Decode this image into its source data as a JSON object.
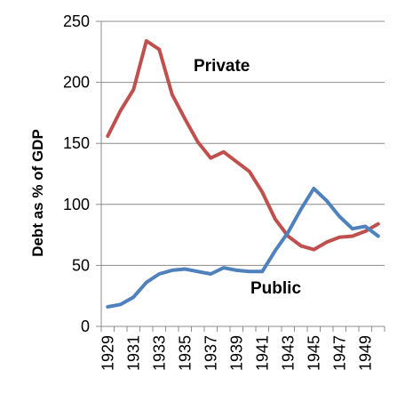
{
  "chart_data": {
    "type": "line",
    "ylabel": "Debt as % of GDP",
    "xlabel": "",
    "ylim": [
      0,
      250
    ],
    "yticks": [
      0,
      50,
      100,
      150,
      200,
      250
    ],
    "x": [
      1929,
      1930,
      1931,
      1932,
      1933,
      1934,
      1935,
      1936,
      1937,
      1938,
      1939,
      1940,
      1941,
      1942,
      1943,
      1944,
      1945,
      1946,
      1947,
      1948,
      1949,
      1950
    ],
    "xticks": [
      1929,
      1931,
      1933,
      1935,
      1937,
      1939,
      1941,
      1943,
      1945,
      1947,
      1949
    ],
    "grid": "horizontal",
    "series": [
      {
        "name": "Private",
        "color": "#c0504d",
        "values": [
          156,
          177,
          194,
          234,
          227,
          190,
          170,
          151,
          138,
          143,
          135,
          127,
          110,
          88,
          74,
          66,
          63,
          69,
          73,
          74,
          78,
          84
        ]
      },
      {
        "name": "Public",
        "color": "#4f81bd",
        "values": [
          16,
          18,
          24,
          36,
          43,
          46,
          47,
          45,
          43,
          48,
          46,
          45,
          45,
          62,
          77,
          96,
          113,
          103,
          90,
          80,
          82,
          74
        ]
      }
    ]
  }
}
